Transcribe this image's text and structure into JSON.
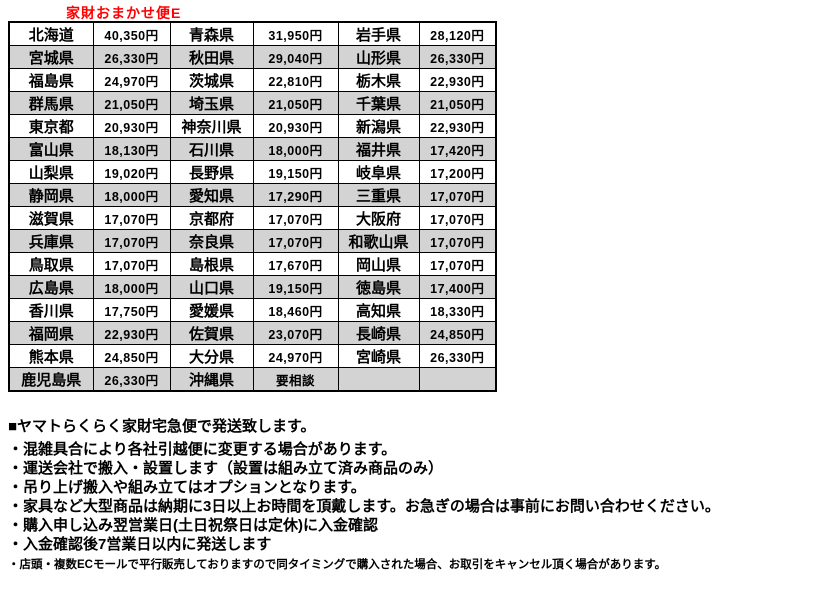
{
  "title": "家財おまかせ便E",
  "colors": {
    "title_red": "#ff0000",
    "row_gray": "#d3d3d3",
    "border_black": "#000000"
  },
  "fee_table": {
    "rows": [
      [
        "北海道",
        "40,350円",
        "青森県",
        "31,950円",
        "岩手県",
        "28,120円"
      ],
      [
        "宮城県",
        "26,330円",
        "秋田県",
        "29,040円",
        "山形県",
        "26,330円"
      ],
      [
        "福島県",
        "24,970円",
        "茨城県",
        "22,810円",
        "栃木県",
        "22,930円"
      ],
      [
        "群馬県",
        "21,050円",
        "埼玉県",
        "21,050円",
        "千葉県",
        "21,050円"
      ],
      [
        "東京都",
        "20,930円",
        "神奈川県",
        "20,930円",
        "新潟県",
        "22,930円"
      ],
      [
        "富山県",
        "18,130円",
        "石川県",
        "18,000円",
        "福井県",
        "17,420円"
      ],
      [
        "山梨県",
        "19,020円",
        "長野県",
        "19,150円",
        "岐阜県",
        "17,200円"
      ],
      [
        "静岡県",
        "18,000円",
        "愛知県",
        "17,290円",
        "三重県",
        "17,070円"
      ],
      [
        "滋賀県",
        "17,070円",
        "京都府",
        "17,070円",
        "大阪府",
        "17,070円"
      ],
      [
        "兵庫県",
        "17,070円",
        "奈良県",
        "17,070円",
        "和歌山県",
        "17,070円"
      ],
      [
        "鳥取県",
        "17,070円",
        "島根県",
        "17,670円",
        "岡山県",
        "17,070円"
      ],
      [
        "広島県",
        "18,000円",
        "山口県",
        "19,150円",
        "徳島県",
        "17,400円"
      ],
      [
        "香川県",
        "17,750円",
        "愛媛県",
        "18,460円",
        "高知県",
        "18,330円"
      ],
      [
        "福岡県",
        "22,930円",
        "佐賀県",
        "23,070円",
        "長崎県",
        "24,850円"
      ],
      [
        "熊本県",
        "24,850円",
        "大分県",
        "24,970円",
        "宮崎県",
        "26,330円"
      ],
      [
        "鹿児島県",
        "26,330円",
        "沖縄県",
        "要相談",
        "",
        ""
      ]
    ]
  },
  "notes": {
    "heading": "■ヤマトらくらく家財宅急便で発送致します。",
    "bullets": [
      "・混雑具合により各社引越便に変更する場合があります。",
      "・運送会社で搬入・設置します（設置は組み立て済み商品のみ）",
      "・吊り上げ搬入や組み立てはオプションとなります。",
      "・家具など大型商品は納期に3日以上お時間を頂戴します。お急ぎの場合は事前にお問い合わせください。",
      "・購入申し込み翌営業日(土日祝祭日は定休)に入金確認",
      "・入金確認後7営業日以内に発送します"
    ],
    "footnote": "・店頭・複数ECモールで平行販売しておりますので同タイミングで購入された場合、お取引をキャンセル頂く場合があります。"
  }
}
